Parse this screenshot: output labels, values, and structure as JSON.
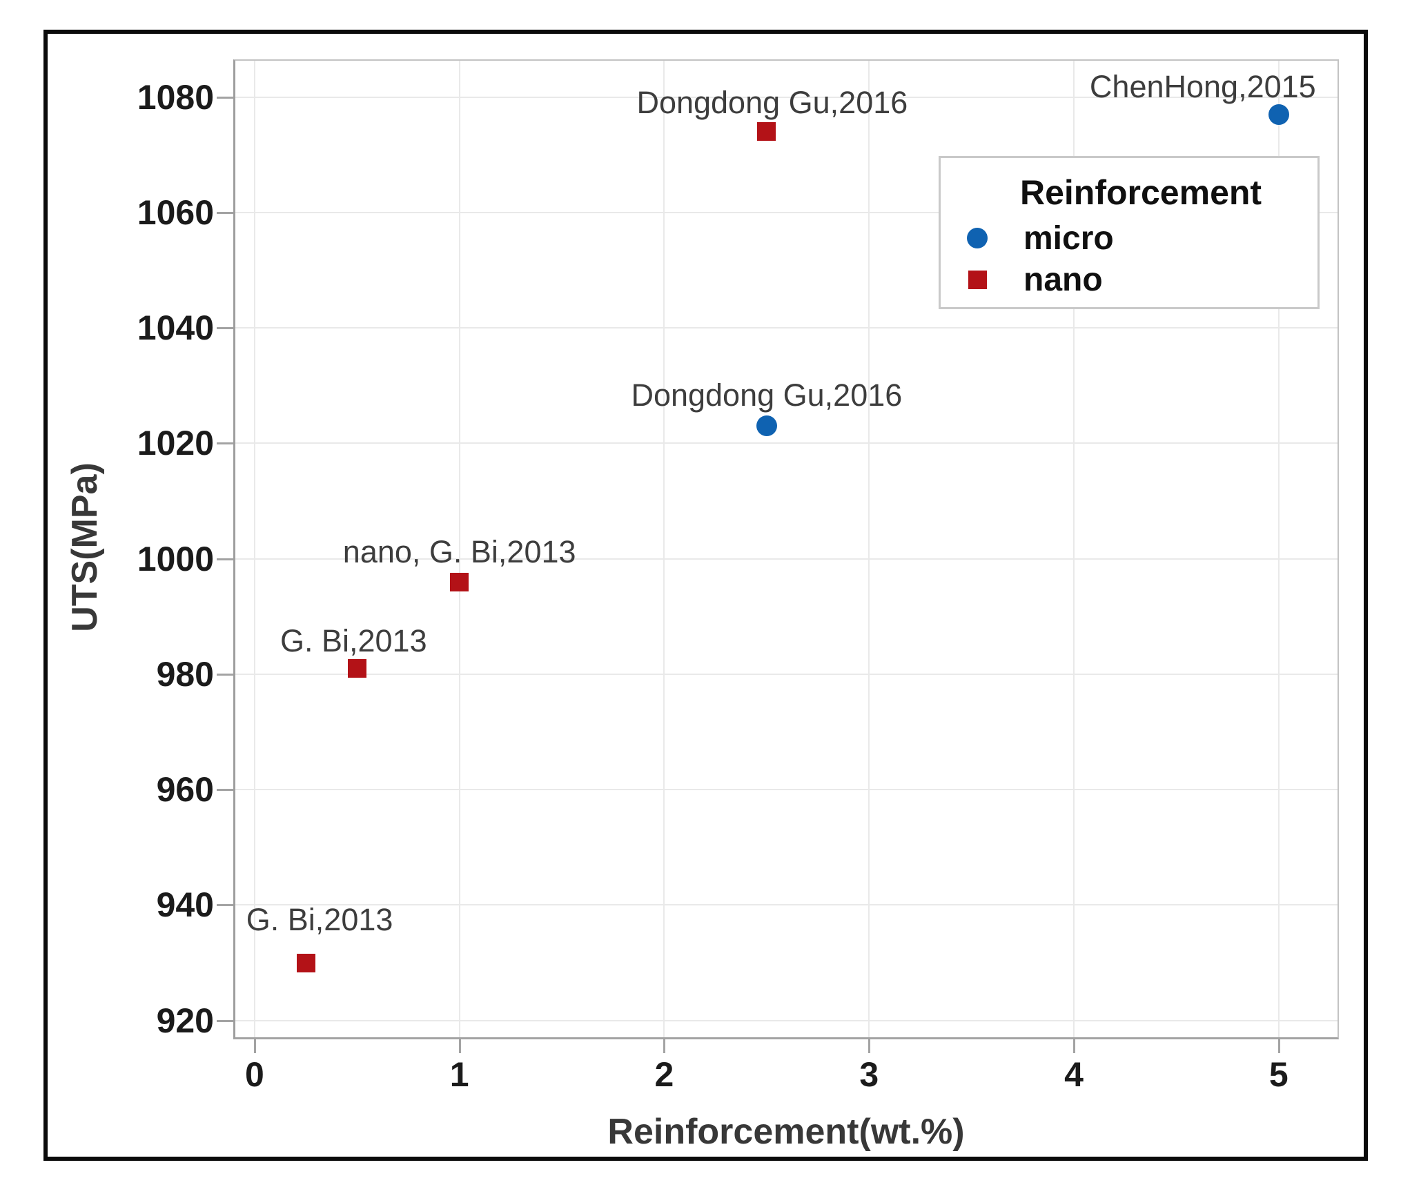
{
  "chart_data": {
    "type": "scatter",
    "title": "",
    "xlabel": "Reinforcement(wt.%)",
    "ylabel": "UTS(MPa)",
    "xlim": [
      -0.094,
      5.287
    ],
    "ylim": [
      917.1,
      1086.3
    ],
    "x_ticks": [
      0,
      1,
      2,
      3,
      4,
      5
    ],
    "y_ticks": [
      920,
      940,
      960,
      980,
      1000,
      1020,
      1040,
      1060,
      1080
    ],
    "grid": true,
    "legend": {
      "title": "Reinforcement",
      "position": "top-right",
      "entries": [
        {
          "label": "micro",
          "marker": "circle",
          "color": "#0f62b1"
        },
        {
          "label": "nano",
          "marker": "square",
          "color": "#b31217"
        }
      ]
    },
    "series": [
      {
        "name": "micro",
        "marker": "circle",
        "marker_size": 30,
        "color": "#0f62b1",
        "points": [
          {
            "x": 2.5,
            "y": 1023,
            "label": "Dongdong Gu,2016",
            "label_dx": 0,
            "label_dy": -44
          },
          {
            "x": 5.0,
            "y": 1077,
            "label": "ChenHong,2015",
            "label_dx": -110,
            "label_dy": -40
          }
        ]
      },
      {
        "name": "nano",
        "marker": "square",
        "marker_size": 27,
        "color": "#b31217",
        "points": [
          {
            "x": 0.25,
            "y": 930,
            "label": "G. Bi,2013",
            "label_dx": 20,
            "label_dy": -62
          },
          {
            "x": 0.5,
            "y": 981,
            "label": "G. Bi,2013",
            "label_dx": -5,
            "label_dy": -40
          },
          {
            "x": 1.0,
            "y": 996,
            "label": "nano, G. Bi,2013",
            "label_dx": 0,
            "label_dy": -43
          },
          {
            "x": 2.5,
            "y": 1074,
            "label": "Dongdong Gu,2016",
            "label_dx": 8,
            "label_dy": -42
          }
        ]
      }
    ]
  }
}
